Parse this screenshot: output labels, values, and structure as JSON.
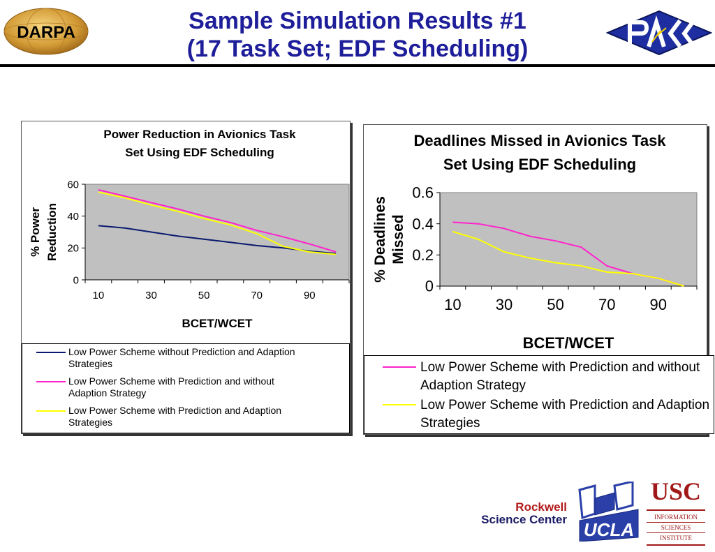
{
  "slide": {
    "title_line1": "Sample Simulation Results #1",
    "title_line2": "(17 Task Set; EDF Scheduling)",
    "title_color": "#1e1e9a"
  },
  "logos": {
    "darpa": "DARPA",
    "rockwell_line1": "Rockwell",
    "rockwell_line2": "Science Center",
    "ucla": "UCLA",
    "usc": "USC",
    "isi_line1": "INFORMATION",
    "isi_line2": "SCIENCES",
    "isi_line3": "INSTITUTE"
  },
  "chart_data": [
    {
      "type": "line",
      "title": "Power Reduction in Avionics Task Set Using EDF Scheduling",
      "title_lines": [
        "Power Reduction in Avionics Task",
        "Set Using EDF Scheduling"
      ],
      "xlabel": "BCET/WCET",
      "ylabel_lines": [
        "% Power",
        "Reduction"
      ],
      "x": [
        10,
        20,
        30,
        40,
        50,
        60,
        70,
        80,
        90,
        100
      ],
      "xticks": [
        "10",
        "30",
        "50",
        "70",
        "90"
      ],
      "yticks": [
        "0",
        "20",
        "40",
        "60"
      ],
      "ylim": [
        0,
        60
      ],
      "plot_background": "#c0c0c0",
      "legend_position": "bottom",
      "series": [
        {
          "name": "Low Power Scheme without Prediction and Adaption Strategies",
          "name_lines": [
            "Low Power Scheme without Prediction and Adaption",
            "Strategies"
          ],
          "color": "#0a1a6e",
          "values": [
            34,
            32.5,
            30,
            27.5,
            25.5,
            23.5,
            21.5,
            20,
            18,
            16.5
          ]
        },
        {
          "name": "Low Power Scheme with Prediction and without Adaption Strategy",
          "name_lines": [
            "Low Power Scheme with Prediction and without",
            "Adaption Strategy"
          ],
          "color": "#ff22cc",
          "values": [
            56.5,
            52.5,
            48.5,
            44.5,
            40,
            36,
            31,
            27,
            22.5,
            17.5
          ]
        },
        {
          "name": "Low Power Scheme with Prediction and Adaption Strategies",
          "name_lines": [
            "Low Power Scheme with Prediction and Adaption",
            "Strategies"
          ],
          "color": "#ffff00",
          "values": [
            55,
            51.5,
            47,
            43,
            38.5,
            34.5,
            29,
            21,
            17.5,
            16
          ]
        }
      ]
    },
    {
      "type": "line",
      "title": "Deadlines Missed in Avionics Task Set Using EDF Scheduling",
      "title_lines": [
        "Deadlines Missed in Avionics Task",
        "Set Using EDF Scheduling"
      ],
      "xlabel": "BCET/WCET",
      "ylabel_lines": [
        "% Deadlines",
        "Missed"
      ],
      "x": [
        10,
        20,
        30,
        40,
        50,
        60,
        70,
        80,
        90,
        100
      ],
      "xticks": [
        "10",
        "30",
        "50",
        "70",
        "90"
      ],
      "yticks": [
        "0",
        "0.2",
        "0.4",
        "0.6"
      ],
      "ylim": [
        0,
        0.6
      ],
      "plot_background": "#c0c0c0",
      "legend_position": "bottom",
      "series": [
        {
          "name": "Low Power Scheme with Prediction and without Adaption Strategy",
          "name_lines": [
            "Low Power Scheme with Prediction and without",
            "Adaption Strategy"
          ],
          "color": "#ff22cc",
          "values": [
            0.41,
            0.4,
            0.37,
            0.32,
            0.29,
            0.25,
            0.13,
            0.08,
            0.05,
            0
          ]
        },
        {
          "name": "Low Power Scheme with Prediction and Adaption Strategies",
          "name_lines": [
            "Low Power Scheme with Prediction and Adaption",
            "Strategies"
          ],
          "color": "#ffff00",
          "values": [
            0.35,
            0.3,
            0.22,
            0.18,
            0.15,
            0.13,
            0.09,
            0.08,
            0.05,
            0
          ]
        }
      ]
    }
  ]
}
